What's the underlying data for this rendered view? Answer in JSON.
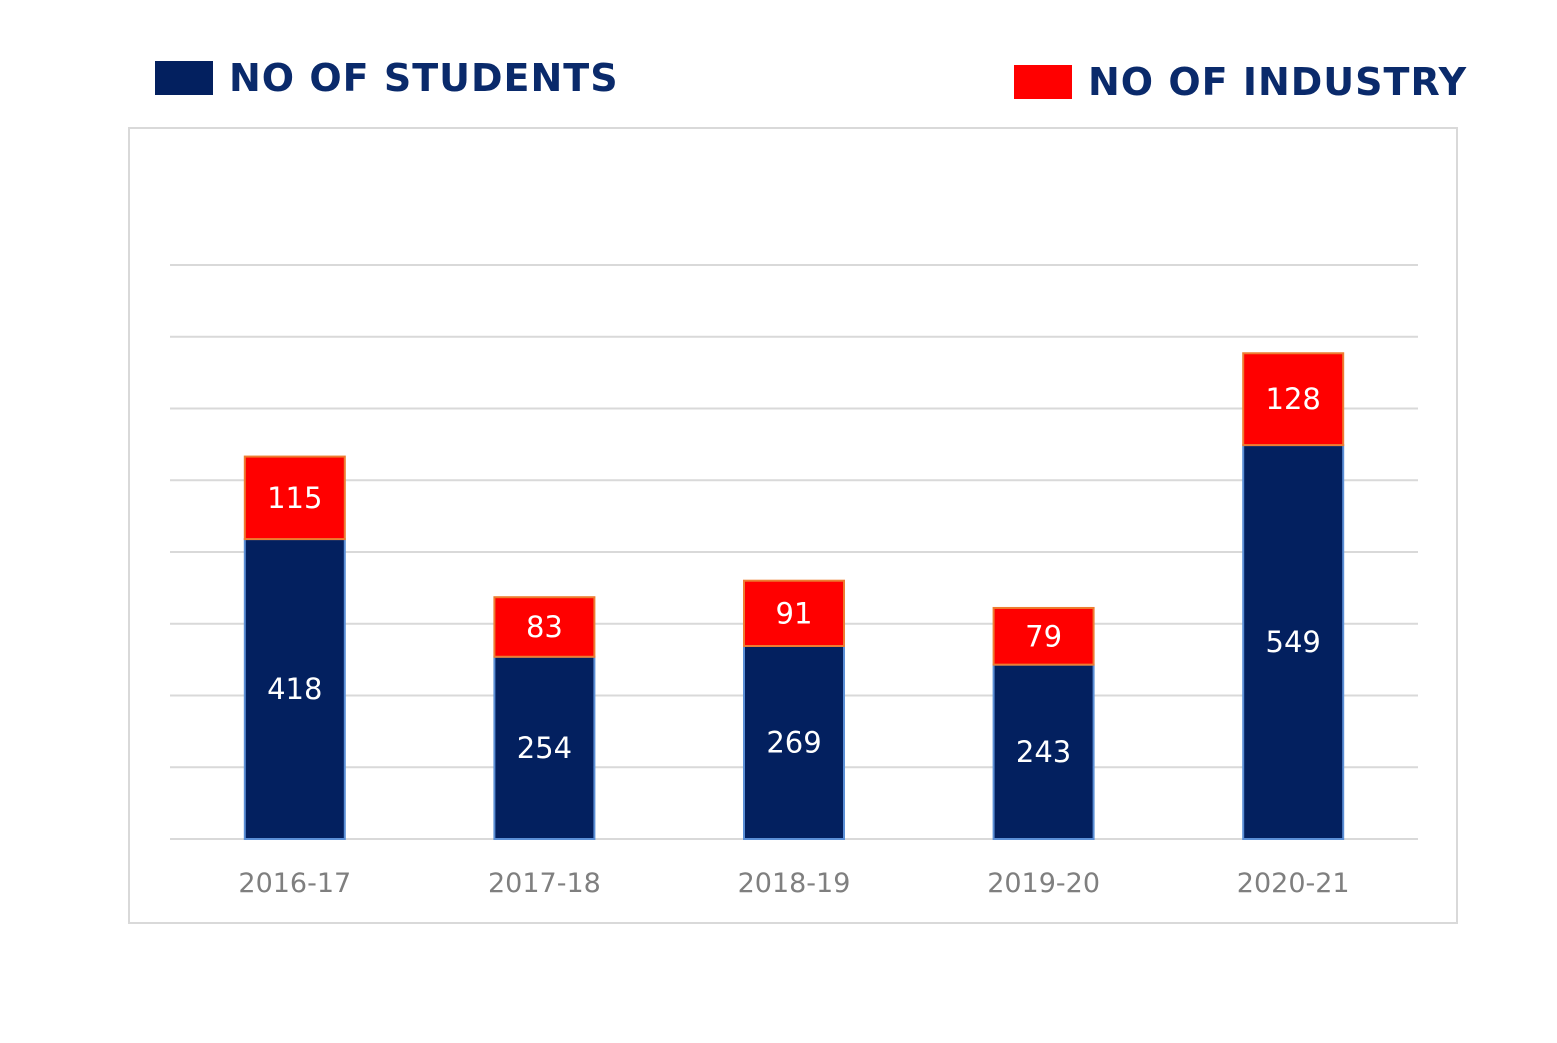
{
  "legend": {
    "students_label": "NO OF STUDENTS",
    "industry_label": "NO OF INDUSTRY"
  },
  "colors": {
    "students": "#03205f",
    "students_stroke": "#5b8fd6",
    "industry": "#ff0000",
    "industry_stroke": "#ed7d31",
    "grid": "#d9d9d9",
    "tick_text": "#7f7f7f"
  },
  "chart_data": {
    "type": "bar",
    "stacked": true,
    "categories": [
      "2016-17",
      "2017-18",
      "2018-19",
      "2019-20",
      "2020-21"
    ],
    "series": [
      {
        "name": "NO OF STUDENTS",
        "values": [
          418,
          254,
          269,
          243,
          549
        ]
      },
      {
        "name": "NO OF INDUSTRY",
        "values": [
          115,
          83,
          91,
          79,
          128
        ]
      }
    ],
    "ylim": [
      0,
      800
    ],
    "grid": true,
    "legend_position": "top",
    "data_labels": true
  }
}
